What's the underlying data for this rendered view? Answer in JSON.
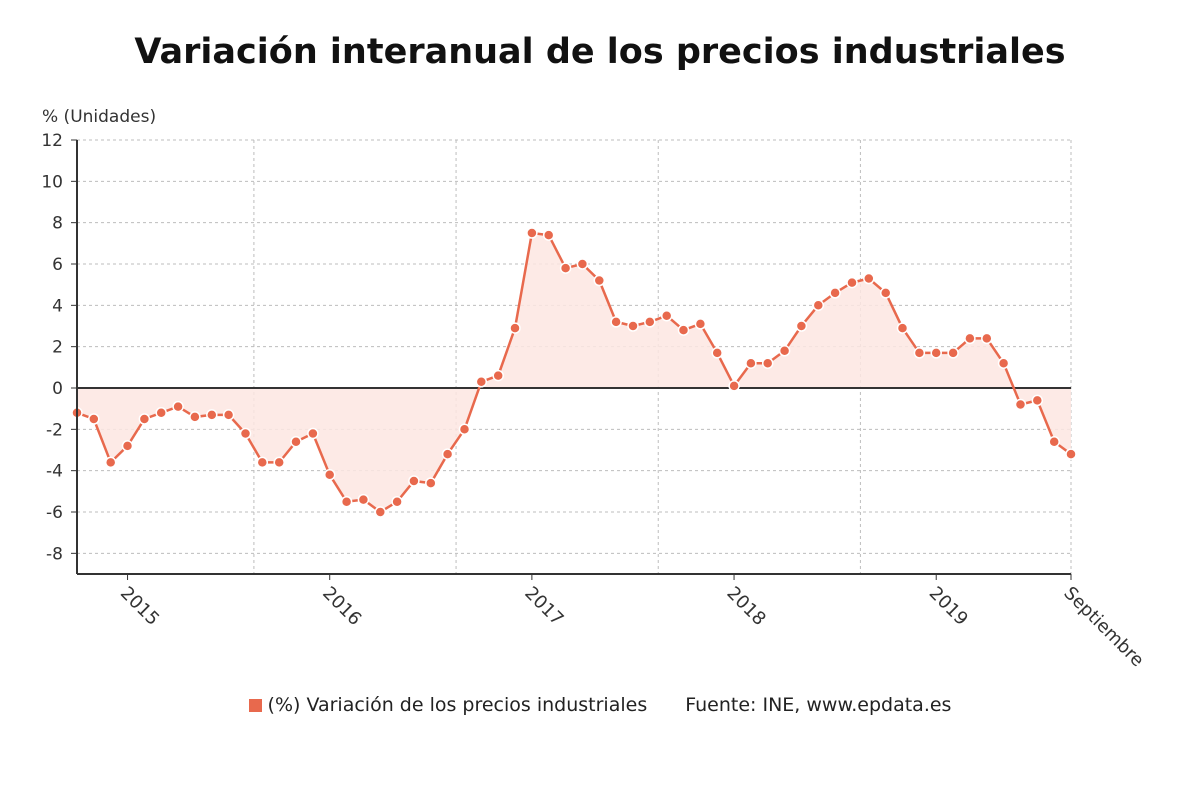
{
  "chart_data": {
    "type": "line",
    "title": "Variación interanual de los precios industriales",
    "ylabel": "% (Unidades)",
    "ylim": [
      -9,
      12
    ],
    "yticks": [
      12,
      10,
      8,
      6,
      4,
      2,
      0,
      -2,
      -4,
      -6,
      -8
    ],
    "x_tick_labels": [
      "2015",
      "2016",
      "2017",
      "2018",
      "2019",
      "Septiembre"
    ],
    "grid": true,
    "legend_position": "bottom",
    "series": [
      {
        "name": "(%) Variación de los precios industriales",
        "color": "#e8694d",
        "values": [
          -1.2,
          -1.5,
          -3.6,
          -2.8,
          -1.5,
          -1.2,
          -0.9,
          -1.4,
          -1.3,
          -1.3,
          -2.2,
          -3.6,
          -3.6,
          -2.6,
          -2.2,
          -4.2,
          -5.5,
          -5.4,
          -6.0,
          -5.5,
          -4.5,
          -4.6,
          -3.2,
          -2.0,
          0.3,
          0.6,
          2.9,
          7.5,
          7.4,
          5.8,
          6.0,
          5.2,
          3.2,
          3.0,
          3.2,
          3.5,
          2.8,
          3.1,
          1.7,
          0.1,
          1.2,
          1.2,
          1.8,
          3.0,
          4.0,
          4.6,
          5.1,
          5.3,
          4.6,
          2.9,
          1.7,
          1.7,
          1.7,
          2.4,
          2.4,
          1.2,
          -0.8,
          -0.6,
          -2.6,
          -3.2
        ]
      }
    ],
    "source": "Fuente: INE, www.epdata.es"
  }
}
